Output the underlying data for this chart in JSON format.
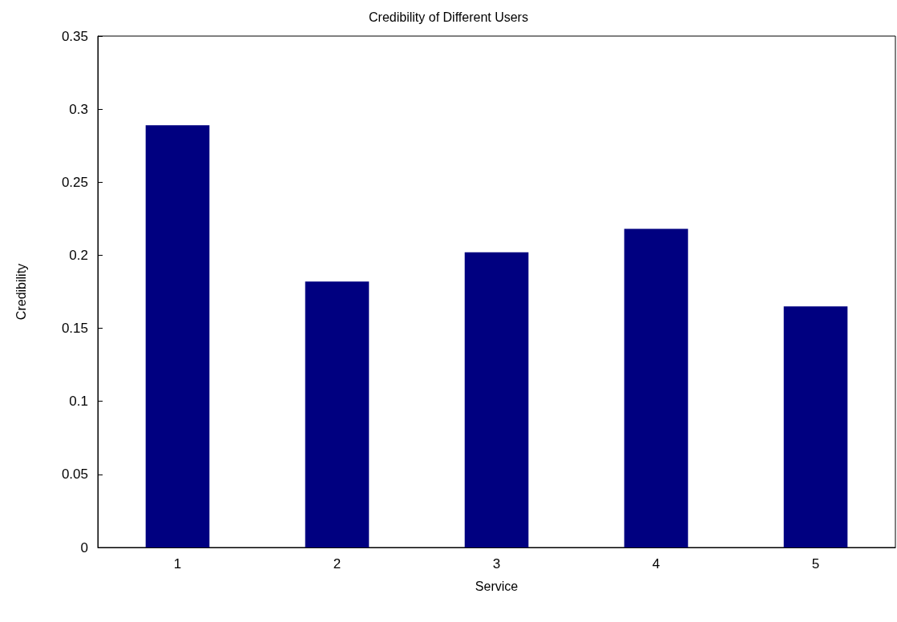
{
  "chart_data": {
    "type": "bar",
    "title": "Credibility of Different Users",
    "xlabel": "Service",
    "ylabel": "Credibility",
    "categories": [
      "1",
      "2",
      "3",
      "4",
      "5"
    ],
    "values": [
      0.289,
      0.182,
      0.202,
      0.218,
      0.165
    ],
    "color": "#000080",
    "ylim": [
      0,
      0.35
    ],
    "yticks": [
      0,
      0.05,
      0.1,
      0.15,
      0.2,
      0.25,
      0.3,
      0.35
    ],
    "grid": false
  }
}
